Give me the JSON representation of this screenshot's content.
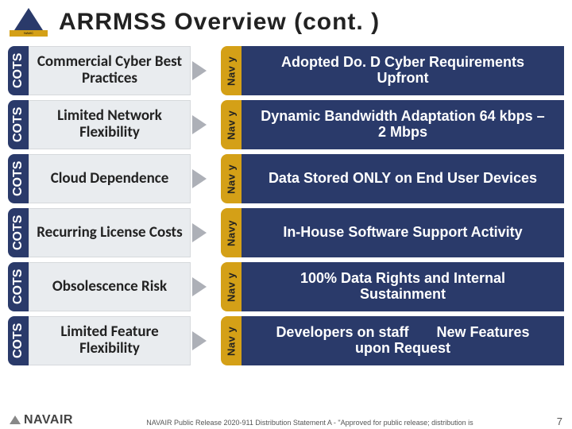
{
  "title": "ARRMSS Overview (cont. )",
  "logo": {
    "bar_text": "NAWC",
    "sub_text": ""
  },
  "labels": {
    "cots": "COTS",
    "navy": "Nav y",
    "navy_tight": "Navy"
  },
  "rows": [
    {
      "cots": "Commercial Cyber Best Practices",
      "navy": "Adopted Do. D Cyber Requirements Upfront",
      "nav_label": "navy"
    },
    {
      "cots": "Limited Network Flexibility",
      "navy": "Dynamic Bandwidth Adaptation 64 kbps – 2 Mbps",
      "nav_label": "navy"
    },
    {
      "cots": "Cloud Dependence",
      "navy": "Data Stored ONLY on End User Devices",
      "nav_label": "navy"
    },
    {
      "cots": "Recurring License Costs",
      "navy": "In-House Software Support Activity",
      "nav_label": "navy_tight"
    },
    {
      "cots": "Obsolescence Risk",
      "navy": "100% Data Rights and Internal Sustainment",
      "nav_label": "navy"
    },
    {
      "cots": "Limited Feature Flexibility",
      "navy": "Developers on staff       New Features upon Request",
      "nav_label": "navy"
    }
  ],
  "footer": {
    "logo": "NAVAIR",
    "distribution": "NAVAIR Public Release 2020-911  Distribution Statement A - \"Approved for public release; distribution is",
    "page": "7"
  },
  "colors": {
    "navy_blue": "#2a3a6a",
    "gold": "#d4a017",
    "light_gray": "#e9ecef",
    "arrow": "#8a8f98"
  }
}
